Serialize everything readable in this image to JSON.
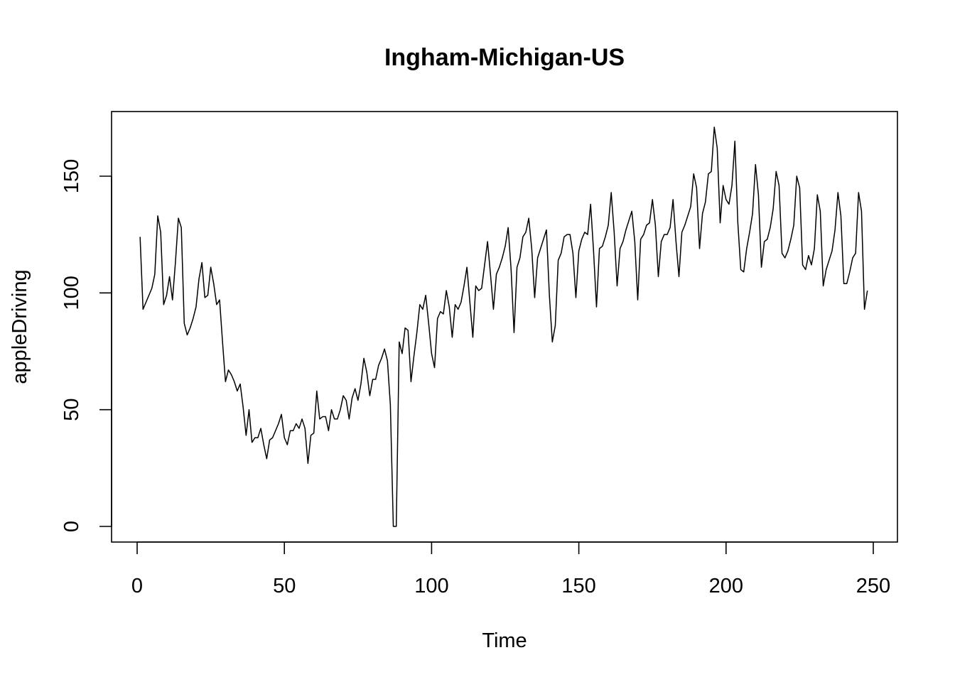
{
  "chart_data": {
    "type": "line",
    "title": "Ingham-Michigan-US",
    "xlabel": "Time",
    "ylabel": "appleDriving",
    "xlim": [
      0,
      258
    ],
    "ylim": [
      0,
      175
    ],
    "x_ticks": [
      0,
      50,
      100,
      150,
      200,
      250
    ],
    "y_ticks": [
      0,
      50,
      100,
      150
    ],
    "grid": false,
    "legend": "none",
    "line_color": "#000000",
    "series": [
      {
        "points": [
          [
            1,
            124
          ],
          [
            2,
            93
          ],
          [
            3,
            96
          ],
          [
            4,
            99
          ],
          [
            5,
            102
          ],
          [
            6,
            108
          ],
          [
            7,
            133
          ],
          [
            8,
            126
          ],
          [
            9,
            95
          ],
          [
            10,
            99
          ],
          [
            11,
            107
          ],
          [
            12,
            97
          ],
          [
            13,
            113
          ],
          [
            14,
            132
          ],
          [
            15,
            128
          ],
          [
            16,
            87
          ],
          [
            17,
            82
          ],
          [
            18,
            85
          ],
          [
            19,
            89
          ],
          [
            20,
            94
          ],
          [
            21,
            106
          ],
          [
            22,
            113
          ],
          [
            23,
            98
          ],
          [
            24,
            99
          ],
          [
            25,
            111
          ],
          [
            26,
            104
          ],
          [
            27,
            95
          ],
          [
            28,
            97
          ],
          [
            29,
            79
          ],
          [
            30,
            62
          ],
          [
            31,
            67
          ],
          [
            32,
            65
          ],
          [
            33,
            62
          ],
          [
            34,
            58
          ],
          [
            35,
            61
          ],
          [
            36,
            51
          ],
          [
            37,
            39
          ],
          [
            38,
            50
          ],
          [
            39,
            36
          ],
          [
            40,
            38
          ],
          [
            41,
            38
          ],
          [
            42,
            42
          ],
          [
            43,
            35
          ],
          [
            44,
            29
          ],
          [
            45,
            37
          ],
          [
            46,
            38
          ],
          [
            47,
            41
          ],
          [
            48,
            44
          ],
          [
            49,
            48
          ],
          [
            50,
            38
          ],
          [
            51,
            35
          ],
          [
            52,
            41
          ],
          [
            53,
            41
          ],
          [
            54,
            44
          ],
          [
            55,
            42
          ],
          [
            56,
            46
          ],
          [
            57,
            42
          ],
          [
            58,
            27
          ],
          [
            59,
            39
          ],
          [
            60,
            40
          ],
          [
            61,
            58
          ],
          [
            62,
            46
          ],
          [
            63,
            47
          ],
          [
            64,
            47
          ],
          [
            65,
            41
          ],
          [
            66,
            50
          ],
          [
            67,
            46
          ],
          [
            68,
            46
          ],
          [
            69,
            50
          ],
          [
            70,
            56
          ],
          [
            71,
            54
          ],
          [
            72,
            46
          ],
          [
            73,
            55
          ],
          [
            74,
            59
          ],
          [
            75,
            54
          ],
          [
            76,
            61
          ],
          [
            77,
            72
          ],
          [
            78,
            66
          ],
          [
            79,
            56
          ],
          [
            80,
            63
          ],
          [
            81,
            63
          ],
          [
            82,
            69
          ],
          [
            83,
            72
          ],
          [
            84,
            76
          ],
          [
            85,
            71
          ],
          [
            86,
            52
          ],
          [
            87,
            0
          ],
          [
            88,
            0
          ],
          [
            89,
            79
          ],
          [
            90,
            74
          ],
          [
            91,
            85
          ],
          [
            92,
            84
          ],
          [
            93,
            62
          ],
          [
            94,
            73
          ],
          [
            95,
            83
          ],
          [
            96,
            95
          ],
          [
            97,
            93
          ],
          [
            98,
            99
          ],
          [
            99,
            87
          ],
          [
            100,
            74
          ],
          [
            101,
            68
          ],
          [
            102,
            89
          ],
          [
            103,
            92
          ],
          [
            104,
            91
          ],
          [
            105,
            101
          ],
          [
            106,
            94
          ],
          [
            107,
            81
          ],
          [
            108,
            95
          ],
          [
            109,
            93
          ],
          [
            110,
            96
          ],
          [
            111,
            103
          ],
          [
            112,
            111
          ],
          [
            113,
            96
          ],
          [
            114,
            81
          ],
          [
            115,
            103
          ],
          [
            116,
            101
          ],
          [
            117,
            102
          ],
          [
            118,
            112
          ],
          [
            119,
            122
          ],
          [
            120,
            108
          ],
          [
            121,
            93
          ],
          [
            122,
            108
          ],
          [
            123,
            111
          ],
          [
            124,
            115
          ],
          [
            125,
            120
          ],
          [
            126,
            128
          ],
          [
            127,
            110
          ],
          [
            128,
            83
          ],
          [
            129,
            111
          ],
          [
            130,
            115
          ],
          [
            131,
            124
          ],
          [
            132,
            126
          ],
          [
            133,
            132
          ],
          [
            134,
            119
          ],
          [
            135,
            98
          ],
          [
            136,
            115
          ],
          [
            137,
            119
          ],
          [
            138,
            123
          ],
          [
            139,
            127
          ],
          [
            140,
            99
          ],
          [
            141,
            79
          ],
          [
            142,
            86
          ],
          [
            143,
            114
          ],
          [
            144,
            117
          ],
          [
            145,
            124
          ],
          [
            146,
            125
          ],
          [
            147,
            125
          ],
          [
            148,
            117
          ],
          [
            149,
            98
          ],
          [
            150,
            118
          ],
          [
            151,
            123
          ],
          [
            152,
            126
          ],
          [
            153,
            125
          ],
          [
            154,
            138
          ],
          [
            155,
            118
          ],
          [
            156,
            94
          ],
          [
            157,
            119
          ],
          [
            158,
            120
          ],
          [
            159,
            124
          ],
          [
            160,
            129
          ],
          [
            161,
            143
          ],
          [
            162,
            126
          ],
          [
            163,
            103
          ],
          [
            164,
            119
          ],
          [
            165,
            122
          ],
          [
            166,
            127
          ],
          [
            167,
            131
          ],
          [
            168,
            135
          ],
          [
            169,
            122
          ],
          [
            170,
            97
          ],
          [
            171,
            123
          ],
          [
            172,
            125
          ],
          [
            173,
            129
          ],
          [
            174,
            130
          ],
          [
            175,
            140
          ],
          [
            176,
            129
          ],
          [
            177,
            107
          ],
          [
            178,
            122
          ],
          [
            179,
            125
          ],
          [
            180,
            125
          ],
          [
            181,
            128
          ],
          [
            182,
            140
          ],
          [
            183,
            122
          ],
          [
            184,
            107
          ],
          [
            185,
            126
          ],
          [
            186,
            129
          ],
          [
            187,
            133
          ],
          [
            188,
            137
          ],
          [
            189,
            151
          ],
          [
            190,
            145
          ],
          [
            191,
            119
          ],
          [
            192,
            134
          ],
          [
            193,
            139
          ],
          [
            194,
            151
          ],
          [
            195,
            152
          ],
          [
            196,
            171
          ],
          [
            197,
            162
          ],
          [
            198,
            130
          ],
          [
            199,
            146
          ],
          [
            200,
            140
          ],
          [
            201,
            138
          ],
          [
            202,
            146
          ],
          [
            203,
            165
          ],
          [
            204,
            130
          ],
          [
            205,
            110
          ],
          [
            206,
            109
          ],
          [
            207,
            119
          ],
          [
            208,
            126
          ],
          [
            209,
            134
          ],
          [
            210,
            155
          ],
          [
            211,
            142
          ],
          [
            212,
            111
          ],
          [
            213,
            122
          ],
          [
            214,
            123
          ],
          [
            215,
            128
          ],
          [
            216,
            136
          ],
          [
            217,
            152
          ],
          [
            218,
            146
          ],
          [
            219,
            117
          ],
          [
            220,
            115
          ],
          [
            221,
            118
          ],
          [
            222,
            123
          ],
          [
            223,
            129
          ],
          [
            224,
            150
          ],
          [
            225,
            145
          ],
          [
            226,
            112
          ],
          [
            227,
            110
          ],
          [
            228,
            116
          ],
          [
            229,
            112
          ],
          [
            230,
            119
          ],
          [
            231,
            142
          ],
          [
            232,
            135
          ],
          [
            233,
            103
          ],
          [
            234,
            110
          ],
          [
            235,
            114
          ],
          [
            236,
            118
          ],
          [
            237,
            127
          ],
          [
            238,
            143
          ],
          [
            239,
            133
          ],
          [
            240,
            104
          ],
          [
            241,
            104
          ],
          [
            242,
            109
          ],
          [
            243,
            115
          ],
          [
            244,
            117
          ],
          [
            245,
            143
          ],
          [
            246,
            135
          ],
          [
            247,
            93
          ],
          [
            248,
            101
          ]
        ]
      }
    ]
  }
}
